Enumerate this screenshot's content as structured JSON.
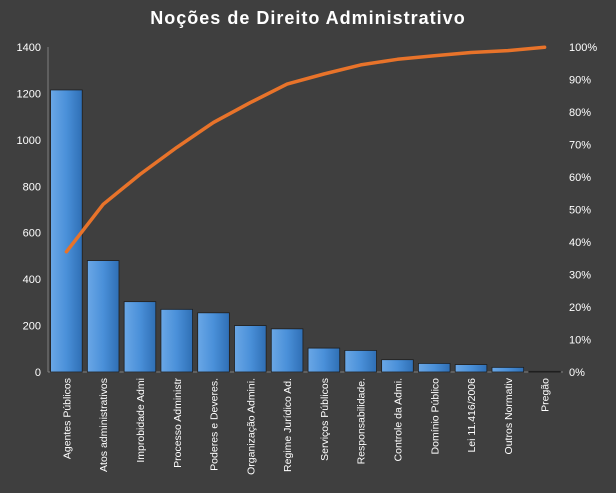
{
  "chart_data": {
    "type": "bar",
    "title": "Noções de Direito Administrativo",
    "categories": [
      "Agentes Públicos",
      "Atos administrativos",
      "Improbidade Admi",
      "Processo Administr",
      "Poderes e Deveres.",
      "Organização Admini.",
      "Regime Jurídico Ad.",
      "Serviços Públicos",
      "Responsabilidade.",
      "Controle da Admi.",
      "Domínio Público",
      "Lei 11.416/2006",
      "Outros Normativ",
      "Pregão"
    ],
    "series": [
      {
        "type": "bar",
        "axis": "left",
        "values": [
          1215,
          480,
          303,
          270,
          255,
          200,
          186,
          103,
          93,
          53,
          37,
          32,
          20,
          3
        ]
      },
      {
        "type": "line",
        "axis": "right",
        "values": [
          37.0,
          51.6,
          60.8,
          69.1,
          76.8,
          82.9,
          88.6,
          91.7,
          94.5,
          96.2,
          97.3,
          98.3,
          98.9,
          99.9
        ]
      }
    ],
    "ylim": [
      0,
      1400
    ],
    "yticks": [
      0,
      200,
      400,
      600,
      800,
      1000,
      1200,
      1400
    ],
    "y2lim": [
      0,
      100
    ],
    "y2ticks": [
      "0%",
      "10%",
      "20%",
      "30%",
      "40%",
      "50%",
      "60%",
      "70%",
      "80%",
      "90%",
      "100%"
    ],
    "colors": {
      "bar": "#4a90d9",
      "line": "#e8732a",
      "background": "#3f3f3f",
      "text": "#ffffff"
    },
    "grid": false,
    "legend": "none"
  }
}
